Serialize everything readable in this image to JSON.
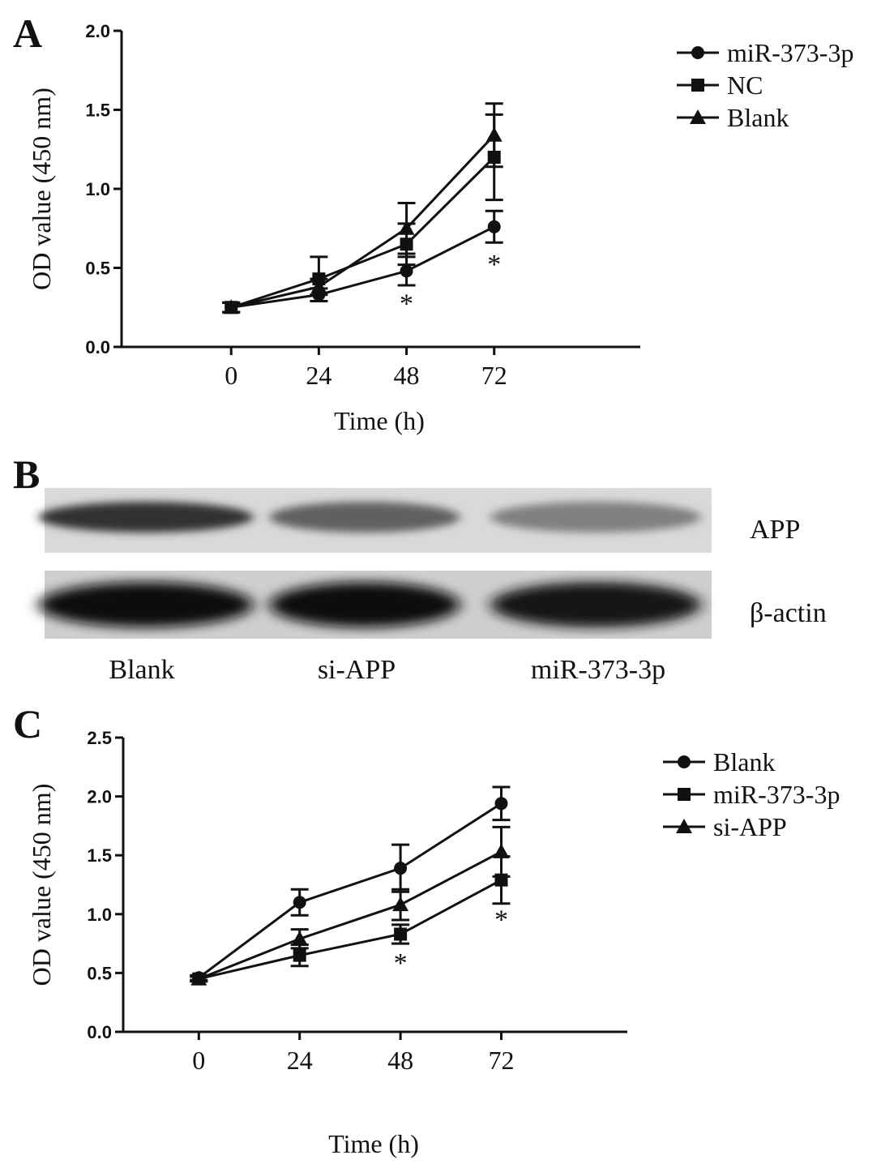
{
  "panels": {
    "a": {
      "letter": "A"
    },
    "b": {
      "letter": "B",
      "row_labels": [
        "APP",
        "β-actin"
      ],
      "lane_labels": [
        "Blank",
        "si-APP",
        "miR-373-3p"
      ],
      "band_intensity": {
        "APP": [
          0.8,
          0.62,
          0.5
        ],
        "β-actin": [
          0.95,
          0.95,
          0.92
        ]
      }
    },
    "c": {
      "letter": "C"
    }
  },
  "chart_data": [
    {
      "type": "line",
      "panel": "A",
      "x_categories": [
        "0",
        "24",
        "48",
        "72"
      ],
      "x": [
        0,
        24,
        48,
        72
      ],
      "xlabel": "Time (h)",
      "ylabel": "OD value (450 nm)",
      "ylim": [
        0.0,
        2.0
      ],
      "yticks": [
        "0.0",
        "0.5",
        "1.0",
        "1.5",
        "2.0"
      ],
      "legend_position": "top-right",
      "series": [
        {
          "name": "miR-373-3p",
          "marker": "circle",
          "values": [
            0.25,
            0.33,
            0.48,
            0.76
          ],
          "errors": [
            0.03,
            0.04,
            0.09,
            0.1
          ]
        },
        {
          "name": "NC",
          "marker": "square",
          "values": [
            0.25,
            0.43,
            0.65,
            1.2
          ],
          "errors": [
            0.03,
            0.14,
            0.13,
            0.27
          ]
        },
        {
          "name": "Blank",
          "marker": "triangle",
          "values": [
            0.25,
            0.38,
            0.75,
            1.34
          ],
          "errors": [
            0.03,
            0.05,
            0.16,
            0.2
          ]
        }
      ],
      "annotations": [
        {
          "text": "*",
          "x": 48,
          "y": 0.3
        },
        {
          "text": "*",
          "x": 72,
          "y": 0.55
        }
      ]
    },
    {
      "type": "line",
      "panel": "C",
      "x_categories": [
        "0",
        "24",
        "48",
        "72"
      ],
      "x": [
        0,
        24,
        48,
        72
      ],
      "xlabel": "Time (h)",
      "ylabel": "OD value (450 nm)",
      "ylim": [
        0.0,
        2.5
      ],
      "yticks": [
        "0.0",
        "0.5",
        "1.0",
        "1.5",
        "2.0",
        "2.5"
      ],
      "legend_position": "top-right",
      "series": [
        {
          "name": "Blank",
          "marker": "circle",
          "values": [
            0.46,
            1.1,
            1.39,
            1.94
          ],
          "errors": [
            0.02,
            0.11,
            0.2,
            0.14
          ]
        },
        {
          "name": "miR-373-3p",
          "marker": "square",
          "values": [
            0.45,
            0.65,
            0.83,
            1.29
          ],
          "errors": [
            0.02,
            0.09,
            0.08,
            0.2
          ]
        },
        {
          "name": "si-APP",
          "marker": "triangle",
          "values": [
            0.45,
            0.79,
            1.08,
            1.53
          ],
          "errors": [
            0.02,
            0.08,
            0.13,
            0.21
          ]
        }
      ],
      "annotations": [
        {
          "text": "*",
          "x": 48,
          "y": 0.62
        },
        {
          "text": "*",
          "x": 72,
          "y": 0.99
        }
      ]
    }
  ]
}
